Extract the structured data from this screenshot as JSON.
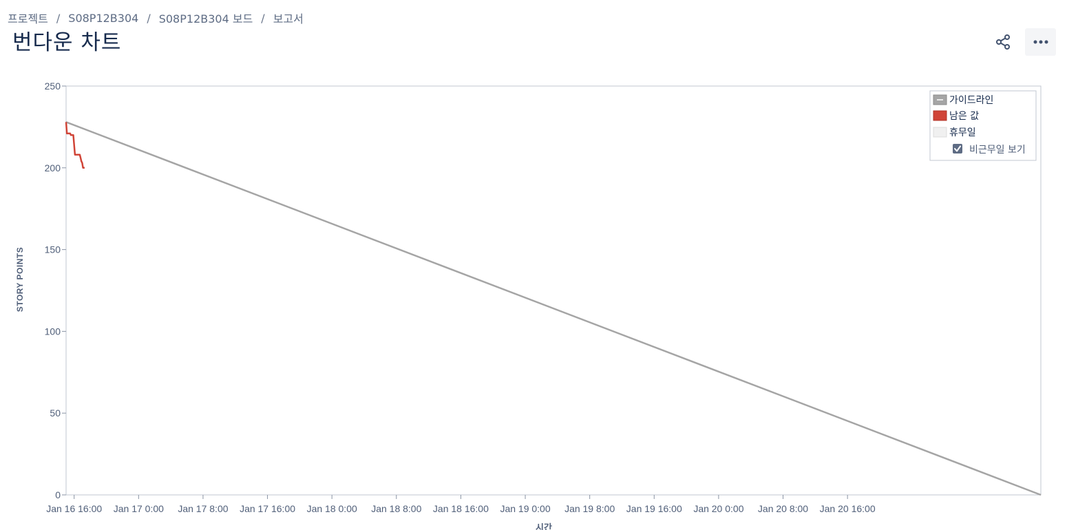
{
  "breadcrumb": {
    "items": [
      "프로젝트",
      "S08P12B304",
      "S08P12B304 보드",
      "보고서"
    ],
    "separator": "/"
  },
  "header": {
    "title": "번다운 차트",
    "share_icon": "share-icon",
    "more_icon": "more-horizontal-icon"
  },
  "colors": {
    "guideline": "#a5a5a5",
    "remaining": "#d04437",
    "non_working": "#f0f0f0",
    "text": "#172b4d",
    "muted": "#5e6c84"
  },
  "legend": {
    "items": [
      {
        "label": "가이드라인",
        "key": "guideline"
      },
      {
        "label": "남은 값",
        "key": "remaining"
      },
      {
        "label": "휴무일",
        "key": "non_working"
      }
    ],
    "toggle_label": "비근무일 보기",
    "toggle_checked": true
  },
  "chart_data": {
    "type": "line",
    "ylabel": "STORY POINTS",
    "xlabel": "시간",
    "ylim": [
      0,
      250
    ],
    "yticks": [
      0,
      50,
      100,
      150,
      200,
      250
    ],
    "xlim_hours": [
      -1,
      120
    ],
    "xticks": [
      {
        "label": "Jan 16 16:00",
        "hours": 0
      },
      {
        "label": "Jan 17 0:00",
        "hours": 8
      },
      {
        "label": "Jan 17 8:00",
        "hours": 16
      },
      {
        "label": "Jan 17 16:00",
        "hours": 24
      },
      {
        "label": "Jan 18 0:00",
        "hours": 32
      },
      {
        "label": "Jan 18 8:00",
        "hours": 40
      },
      {
        "label": "Jan 18 16:00",
        "hours": 48
      },
      {
        "label": "Jan 19 0:00",
        "hours": 56
      },
      {
        "label": "Jan 19 8:00",
        "hours": 64
      },
      {
        "label": "Jan 19 16:00",
        "hours": 72
      },
      {
        "label": "Jan 20 0:00",
        "hours": 80
      },
      {
        "label": "Jan 20 8:00",
        "hours": 88
      },
      {
        "label": "Jan 20 16:00",
        "hours": 96
      }
    ],
    "series": [
      {
        "name": "가이드라인",
        "points": [
          [
            -1,
            228
          ],
          [
            120,
            0
          ]
        ]
      },
      {
        "name": "남은 값",
        "points": [
          [
            -1,
            228
          ],
          [
            -0.9,
            221
          ],
          [
            -0.5,
            221
          ],
          [
            -0.4,
            220
          ],
          [
            -0.1,
            220
          ],
          [
            0.1,
            208
          ],
          [
            0.7,
            208
          ],
          [
            0.8,
            206
          ],
          [
            0.9,
            204
          ],
          [
            1.0,
            203
          ],
          [
            1.1,
            200
          ],
          [
            1.3,
            200
          ]
        ]
      }
    ]
  }
}
